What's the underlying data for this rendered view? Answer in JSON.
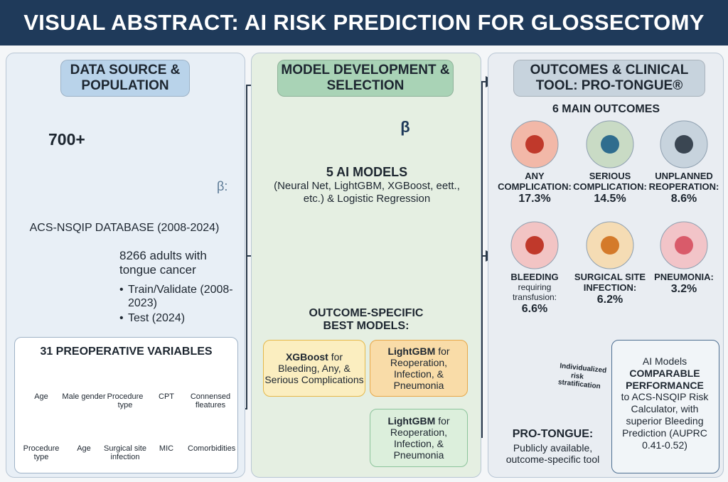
{
  "title": "VISUAL ABSTRACT: AI RISK PREDICTION FOR GLOSSECTOMY",
  "data_source": {
    "heading": "DATA SOURCE & POPULATION",
    "map_label": "700+",
    "map_symbol": "β:",
    "database": "ACS-NSQIP DATABASE (2008-2024)",
    "cohort": "8266 adults with tongue cancer",
    "splits": [
      "Train/Validate (2008-2023)",
      "Test (2024)"
    ],
    "variables_title": "31 PREOPERATIVE VARIABLES",
    "variables": [
      "Age",
      "Male gender",
      "Procedure type",
      "CPT",
      "Connensed fleatures",
      "Procedure type",
      "Age",
      "Surgical site infection",
      "MIC",
      "Comorbidities"
    ]
  },
  "model_development": {
    "heading": "MODEL DEVELOPMENT & SELECTION",
    "chip_label": "β",
    "models_title": "5 AI MODELS",
    "models_desc": "(Neural Net, LightGBM, XGBoost, eett., etc.) & Logistic Regression",
    "best_title": "OUTCOME-SPECIFIC BEST MODELS:",
    "best_models": [
      {
        "model": "XGBoost",
        "desc": "for Bleeding, Any, & Serious Complications"
      },
      {
        "model": "LightGBM",
        "desc": "for Reoperation, Infection, & Pneumonia"
      },
      {
        "model": "LightGBM",
        "desc": "for Reoperation, Infection, & Pneumonia"
      }
    ]
  },
  "outcomes": {
    "heading": "OUTCOMES & CLINICAL TOOL: PRO-TONGUE®",
    "subheading": "6 MAIN OUTCOMES",
    "items": [
      {
        "name": "ANY COMPLICATION:",
        "value": "17.3%"
      },
      {
        "name": "SERIOUS COMPLICATION:",
        "value": "14.5%"
      },
      {
        "name": "UNPLANNED REOPERATION:",
        "value": "8.6%"
      },
      {
        "name": "BLEEDING",
        "note": "requiring transfusion:",
        "value": "6.6%"
      },
      {
        "name": "SURGICAL SITE INFECTION:",
        "value": "6.2%"
      },
      {
        "name": "PNEUMONIA:",
        "value": "3.2%"
      }
    ],
    "tool": {
      "tablet": "Individualized risk stratification",
      "name": "PRO-TONGUE:",
      "desc": "Publicly available, outcome-specific tool"
    },
    "performance": {
      "intro": "AI Models",
      "emphasis": "COMPARABLE PERFORMANCE",
      "rest": "to ACS-NSQIP Risk Calculator, with superior Bleeding Prediction (AUPRC 0.41-0.52)"
    }
  }
}
